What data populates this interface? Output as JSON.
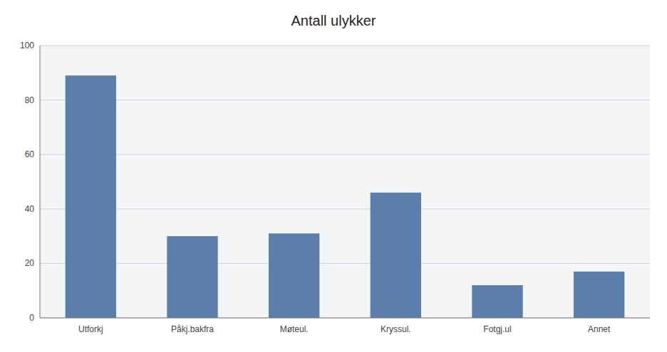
{
  "chart_data": {
    "type": "bar",
    "title": "Antall ulykker",
    "categories": [
      "Utforkj",
      "Påkj.bakfra",
      "Møteul.",
      "Kryssul.",
      "Fotgj.ul",
      "Annet"
    ],
    "values": [
      89,
      30,
      31,
      46,
      12,
      17
    ],
    "color": "#5b7faa",
    "ylim": [
      0,
      100
    ],
    "yticks": [
      0,
      20,
      40,
      60,
      80,
      100
    ],
    "grid": true
  }
}
